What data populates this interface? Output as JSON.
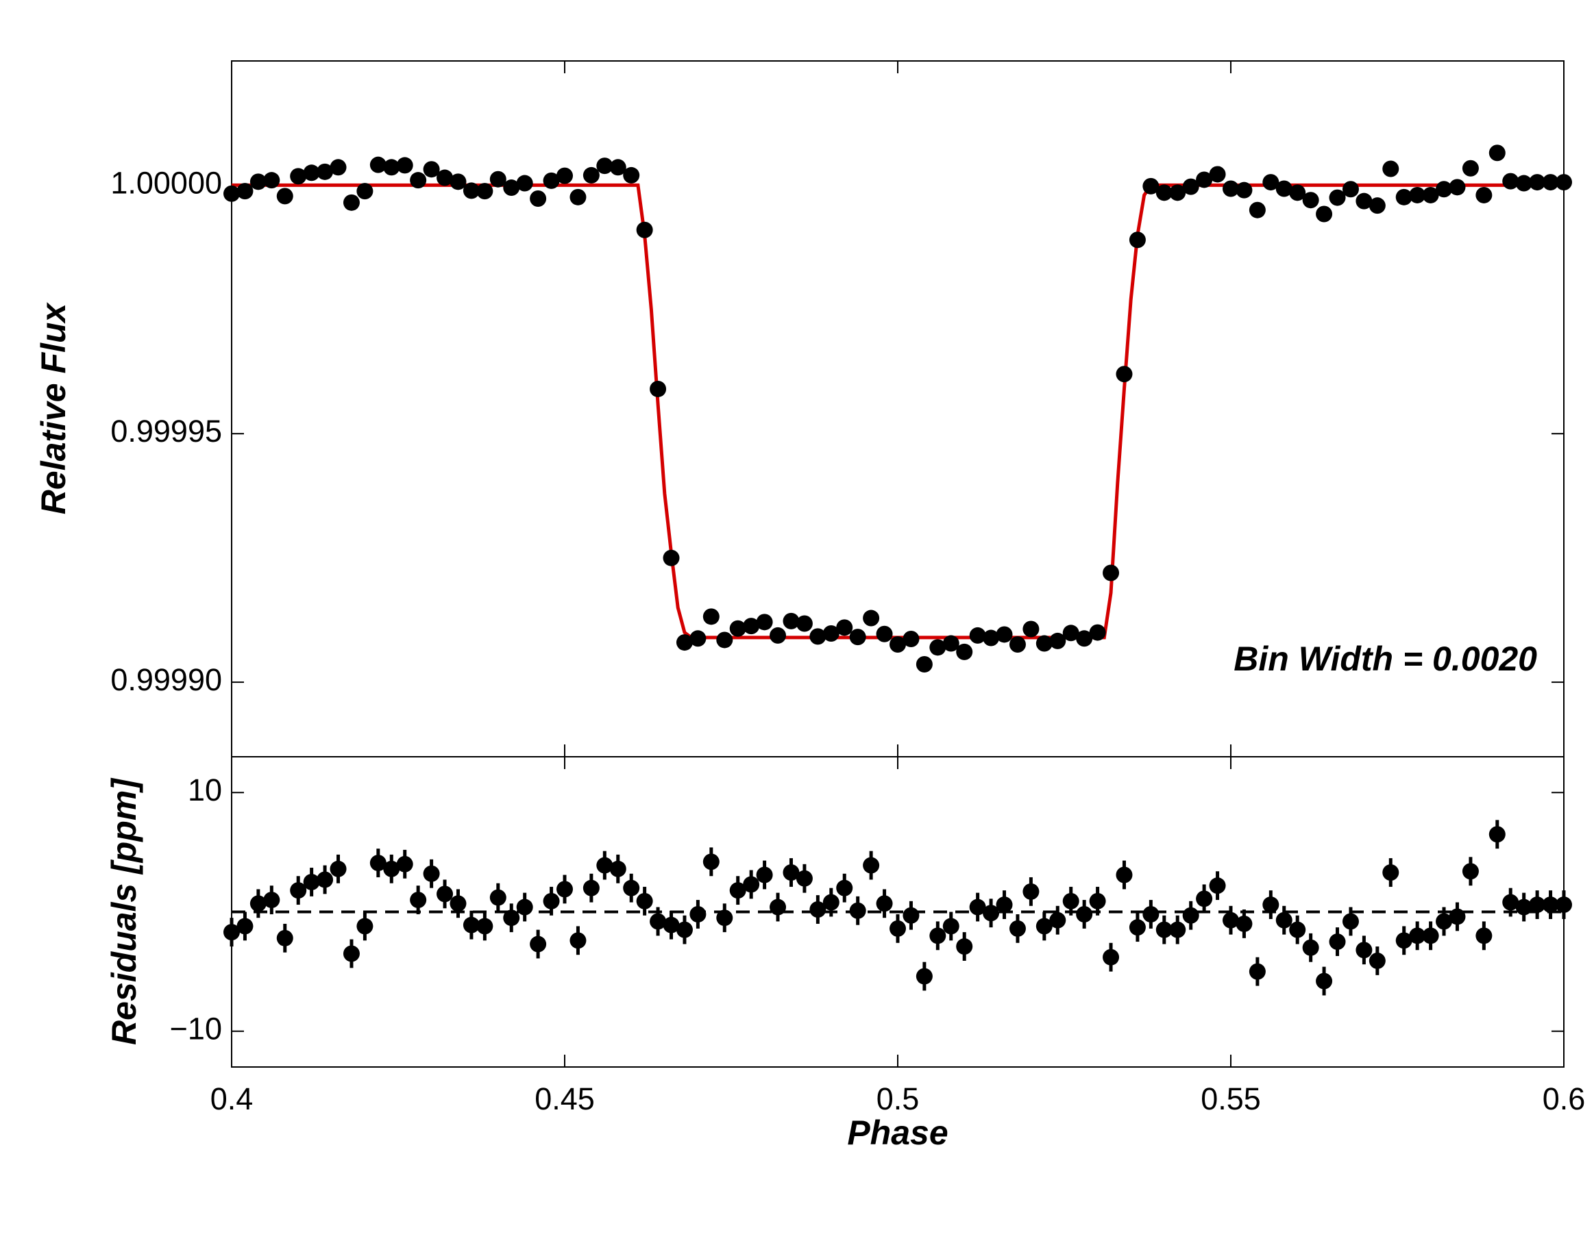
{
  "chart_data": [
    {
      "type": "scatter",
      "ylabel": "Relative Flux",
      "annotation": "Bin Width = 0.0020",
      "color": "#000000",
      "x": [
        0.4,
        0.402,
        0.404,
        0.406,
        0.408,
        0.41,
        0.412,
        0.414,
        0.416,
        0.418,
        0.42,
        0.422,
        0.424,
        0.426,
        0.428,
        0.43,
        0.432,
        0.434,
        0.436,
        0.438,
        0.44,
        0.442,
        0.444,
        0.446,
        0.448,
        0.45,
        0.452,
        0.454,
        0.456,
        0.458,
        0.46,
        0.462,
        0.464,
        0.466,
        0.468,
        0.47,
        0.472,
        0.474,
        0.476,
        0.478,
        0.48,
        0.482,
        0.484,
        0.486,
        0.488,
        0.49,
        0.492,
        0.494,
        0.496,
        0.498,
        0.5,
        0.502,
        0.504,
        0.506,
        0.508,
        0.51,
        0.512,
        0.514,
        0.516,
        0.518,
        0.52,
        0.522,
        0.524,
        0.526,
        0.528,
        0.53,
        0.532,
        0.534,
        0.536,
        0.538,
        0.54,
        0.542,
        0.544,
        0.546,
        0.548,
        0.55,
        0.552,
        0.554,
        0.556,
        0.558,
        0.56,
        0.562,
        0.564,
        0.566,
        0.568,
        0.57,
        0.572,
        0.574,
        0.576,
        0.578,
        0.58,
        0.582,
        0.584,
        0.586,
        0.588,
        0.59,
        0.592,
        0.594,
        0.596,
        0.598,
        0.6
      ],
      "values": [
        0.9999983,
        0.9999988,
        1.0000007,
        1.000001,
        0.9999978,
        1.0000018,
        1.0000025,
        1.0000027,
        1.0000036,
        0.9999965,
        0.9999988,
        1.0000041,
        1.0000036,
        1.000004,
        1.000001,
        1.0000032,
        1.0000015,
        1.0000007,
        0.9999989,
        0.9999988,
        1.0000012,
        0.9999995,
        1.0000004,
        0.9999973,
        1.0000009,
        1.0000019,
        0.9999976,
        1.000002,
        1.0000039,
        1.0000036,
        1.000002,
        0.999991,
        0.999959,
        0.999925,
        0.999908,
        0.9999088,
        0.9999132,
        0.9999085,
        0.9999108,
        0.9999113,
        0.9999121,
        0.9999094,
        0.9999123,
        0.9999118,
        0.9999092,
        0.9999098,
        0.999911,
        0.9999091,
        0.9999129,
        0.9999097,
        0.9999076,
        0.9999087,
        0.9999036,
        0.999907,
        0.9999078,
        0.9999061,
        0.9999094,
        0.9999089,
        0.9999096,
        0.9999076,
        0.9999107,
        0.9999078,
        0.9999083,
        0.9999099,
        0.9999088,
        0.99991,
        0.999922,
        0.999962,
        0.999989,
        0.9999998,
        0.9999985,
        0.9999985,
        0.9999997,
        1.0000011,
        1.0000022,
        0.9999993,
        0.999999,
        0.999995,
        1.0000006,
        0.9999993,
        0.9999985,
        0.999997,
        0.9999942,
        0.9999975,
        0.9999992,
        0.9999968,
        0.9999959,
        1.0000033,
        0.9999976,
        0.999998,
        0.999998,
        0.9999992,
        0.9999996,
        1.0000034,
        0.999998,
        1.0000065,
        1.0000008,
        1.0000004,
        1.0000006,
        1.0000006,
        1.0000006
      ],
      "error": 1.2e-06,
      "model": {
        "color": "#d40000",
        "x": [
          0.4,
          0.461,
          0.462,
          0.463,
          0.464,
          0.465,
          0.466,
          0.467,
          0.468,
          0.469,
          0.531,
          0.532,
          0.533,
          0.534,
          0.535,
          0.536,
          0.537,
          0.538,
          0.6
        ],
        "values": [
          1.0,
          1.0,
          0.99999,
          0.999975,
          0.999956,
          0.999938,
          0.999926,
          0.999915,
          0.99991,
          0.999909,
          0.999909,
          0.999918,
          0.99994,
          0.999959,
          0.999977,
          0.99999,
          0.999998,
          1.0,
          1.0
        ]
      },
      "xlim": [
        0.4,
        0.6
      ],
      "ylim": [
        0.999885,
        1.000025
      ],
      "yticks": [
        {
          "value": 0.9999,
          "label": "0.99990"
        },
        {
          "value": 0.99995,
          "label": "0.99995"
        },
        {
          "value": 1,
          "label": "1.00000"
        }
      ]
    },
    {
      "type": "scatter",
      "ylabel": "Residuals [ppm]",
      "xlabel": "Phase",
      "color": "#000000",
      "x": [
        0.4,
        0.402,
        0.404,
        0.406,
        0.408,
        0.41,
        0.412,
        0.414,
        0.416,
        0.418,
        0.42,
        0.422,
        0.424,
        0.426,
        0.428,
        0.43,
        0.432,
        0.434,
        0.436,
        0.438,
        0.44,
        0.442,
        0.444,
        0.446,
        0.448,
        0.45,
        0.452,
        0.454,
        0.456,
        0.458,
        0.46,
        0.462,
        0.464,
        0.466,
        0.468,
        0.47,
        0.472,
        0.474,
        0.476,
        0.478,
        0.48,
        0.482,
        0.484,
        0.486,
        0.488,
        0.49,
        0.492,
        0.494,
        0.496,
        0.498,
        0.5,
        0.502,
        0.504,
        0.506,
        0.508,
        0.51,
        0.512,
        0.514,
        0.516,
        0.518,
        0.52,
        0.522,
        0.524,
        0.526,
        0.528,
        0.53,
        0.532,
        0.534,
        0.536,
        0.538,
        0.54,
        0.542,
        0.544,
        0.546,
        0.548,
        0.55,
        0.552,
        0.554,
        0.556,
        0.558,
        0.56,
        0.562,
        0.564,
        0.566,
        0.568,
        0.57,
        0.572,
        0.574,
        0.576,
        0.578,
        0.58,
        0.582,
        0.584,
        0.586,
        0.588,
        0.59,
        0.592,
        0.594,
        0.596,
        0.598,
        0.6
      ],
      "values": [
        -1.7,
        -1.2,
        0.7,
        1.0,
        -2.2,
        1.8,
        2.5,
        2.7,
        3.6,
        -3.5,
        -1.2,
        4.1,
        3.6,
        4.0,
        1.0,
        3.2,
        1.5,
        0.7,
        -1.1,
        -1.2,
        1.2,
        -0.5,
        0.4,
        -2.7,
        0.9,
        1.9,
        -2.4,
        2.0,
        3.9,
        3.6,
        2.0,
        0.9,
        -0.8,
        -1.1,
        -1.5,
        -0.2,
        4.2,
        -0.5,
        1.8,
        2.3,
        3.1,
        0.4,
        3.3,
        2.8,
        0.2,
        0.8,
        2.0,
        0.1,
        3.9,
        0.7,
        -1.4,
        -0.3,
        -5.4,
        -2.0,
        -1.2,
        -2.9,
        0.4,
        -0.1,
        0.6,
        -1.4,
        1.7,
        -1.2,
        -0.7,
        0.9,
        -0.2,
        0.9,
        -3.8,
        3.1,
        -1.3,
        -0.2,
        -1.5,
        -1.5,
        -0.3,
        1.1,
        2.2,
        -0.7,
        -1.0,
        -5.0,
        0.6,
        -0.7,
        -1.5,
        -3.0,
        -5.8,
        -2.5,
        -0.8,
        -3.2,
        -4.1,
        3.3,
        -2.4,
        -2.0,
        -2.0,
        -0.8,
        -0.4,
        3.4,
        -2.0,
        6.5,
        0.8,
        0.4,
        0.6,
        0.6,
        0.6
      ],
      "error": 1.2,
      "hline": 0,
      "xlim": [
        0.4,
        0.6
      ],
      "ylim": [
        -13,
        13
      ],
      "xticks": [
        0.4,
        0.45,
        0.5,
        0.55,
        0.6
      ],
      "yticks": [
        {
          "value": -10,
          "label": "−10"
        },
        10
      ]
    }
  ]
}
